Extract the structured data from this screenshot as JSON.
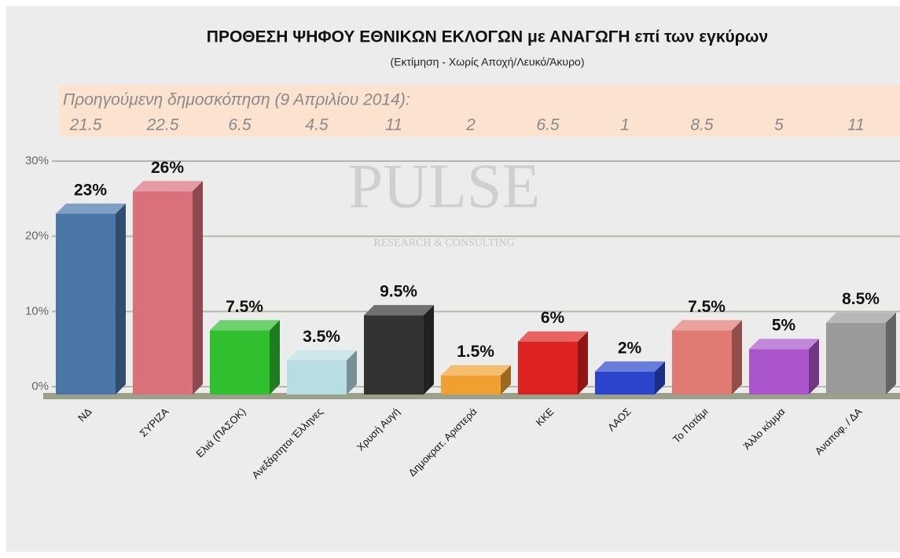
{
  "chart_data": {
    "type": "bar3d",
    "title": "ΠΡΟΘΕΣΗ ΨΗΦΟΥ ΕΘΝΙΚΩΝ ΕΚΛΟΓΩΝ με ΑΝΑΓΩΓΗ επί των εγκύρων",
    "subtitle": "(Εκτίμηση  -  Χωρίς Αποχή/Λευκό/Άκυρο)",
    "categories": [
      "ΝΔ",
      "ΣΥΡΙΖΑ",
      "Ελιά (ΠΑΣΟΚ)",
      "Ανεξάρτητοι Έλληνες",
      "Χρυσή Αυγή",
      "Δημοκρατ. Αριστερά",
      "ΚΚΕ",
      "ΛΑΟΣ",
      "Το Ποτάμι",
      "Άλλο κόμμα",
      "Αναποφ. / ΔΑ"
    ],
    "values": [
      23,
      26,
      7.5,
      3.5,
      9.5,
      1.5,
      6,
      2,
      7.5,
      5,
      8.5
    ],
    "value_labels": [
      "23%",
      "26%",
      "7.5%",
      "3.5%",
      "9.5%",
      "1.5%",
      "6%",
      "2%",
      "7.5%",
      "5%",
      "8.5%"
    ],
    "colors": [
      "#4a76a8",
      "#d9707a",
      "#2fbf2f",
      "#b8dde2",
      "#333333",
      "#f0a030",
      "#dd2222",
      "#2a44cc",
      "#e07a72",
      "#aa55cc",
      "#9a9a9a"
    ],
    "previous": {
      "label": "Προηγούμενη δημοσκόπηση (9 Απριλίου 2014):",
      "values": [
        21.5,
        22.5,
        6.5,
        4.5,
        11,
        2,
        6.5,
        1,
        8.5,
        5,
        11
      ]
    },
    "watermark": [
      "PULSE",
      "RESEARCH & CONSULTING"
    ],
    "ylim": [
      0,
      30
    ],
    "yticks": [
      {
        "value": 0,
        "label": "0%"
      },
      {
        "value": 10,
        "label": "10%"
      },
      {
        "value": 20,
        "label": "20%"
      },
      {
        "value": 30,
        "label": "30%"
      }
    ],
    "grid": true
  }
}
